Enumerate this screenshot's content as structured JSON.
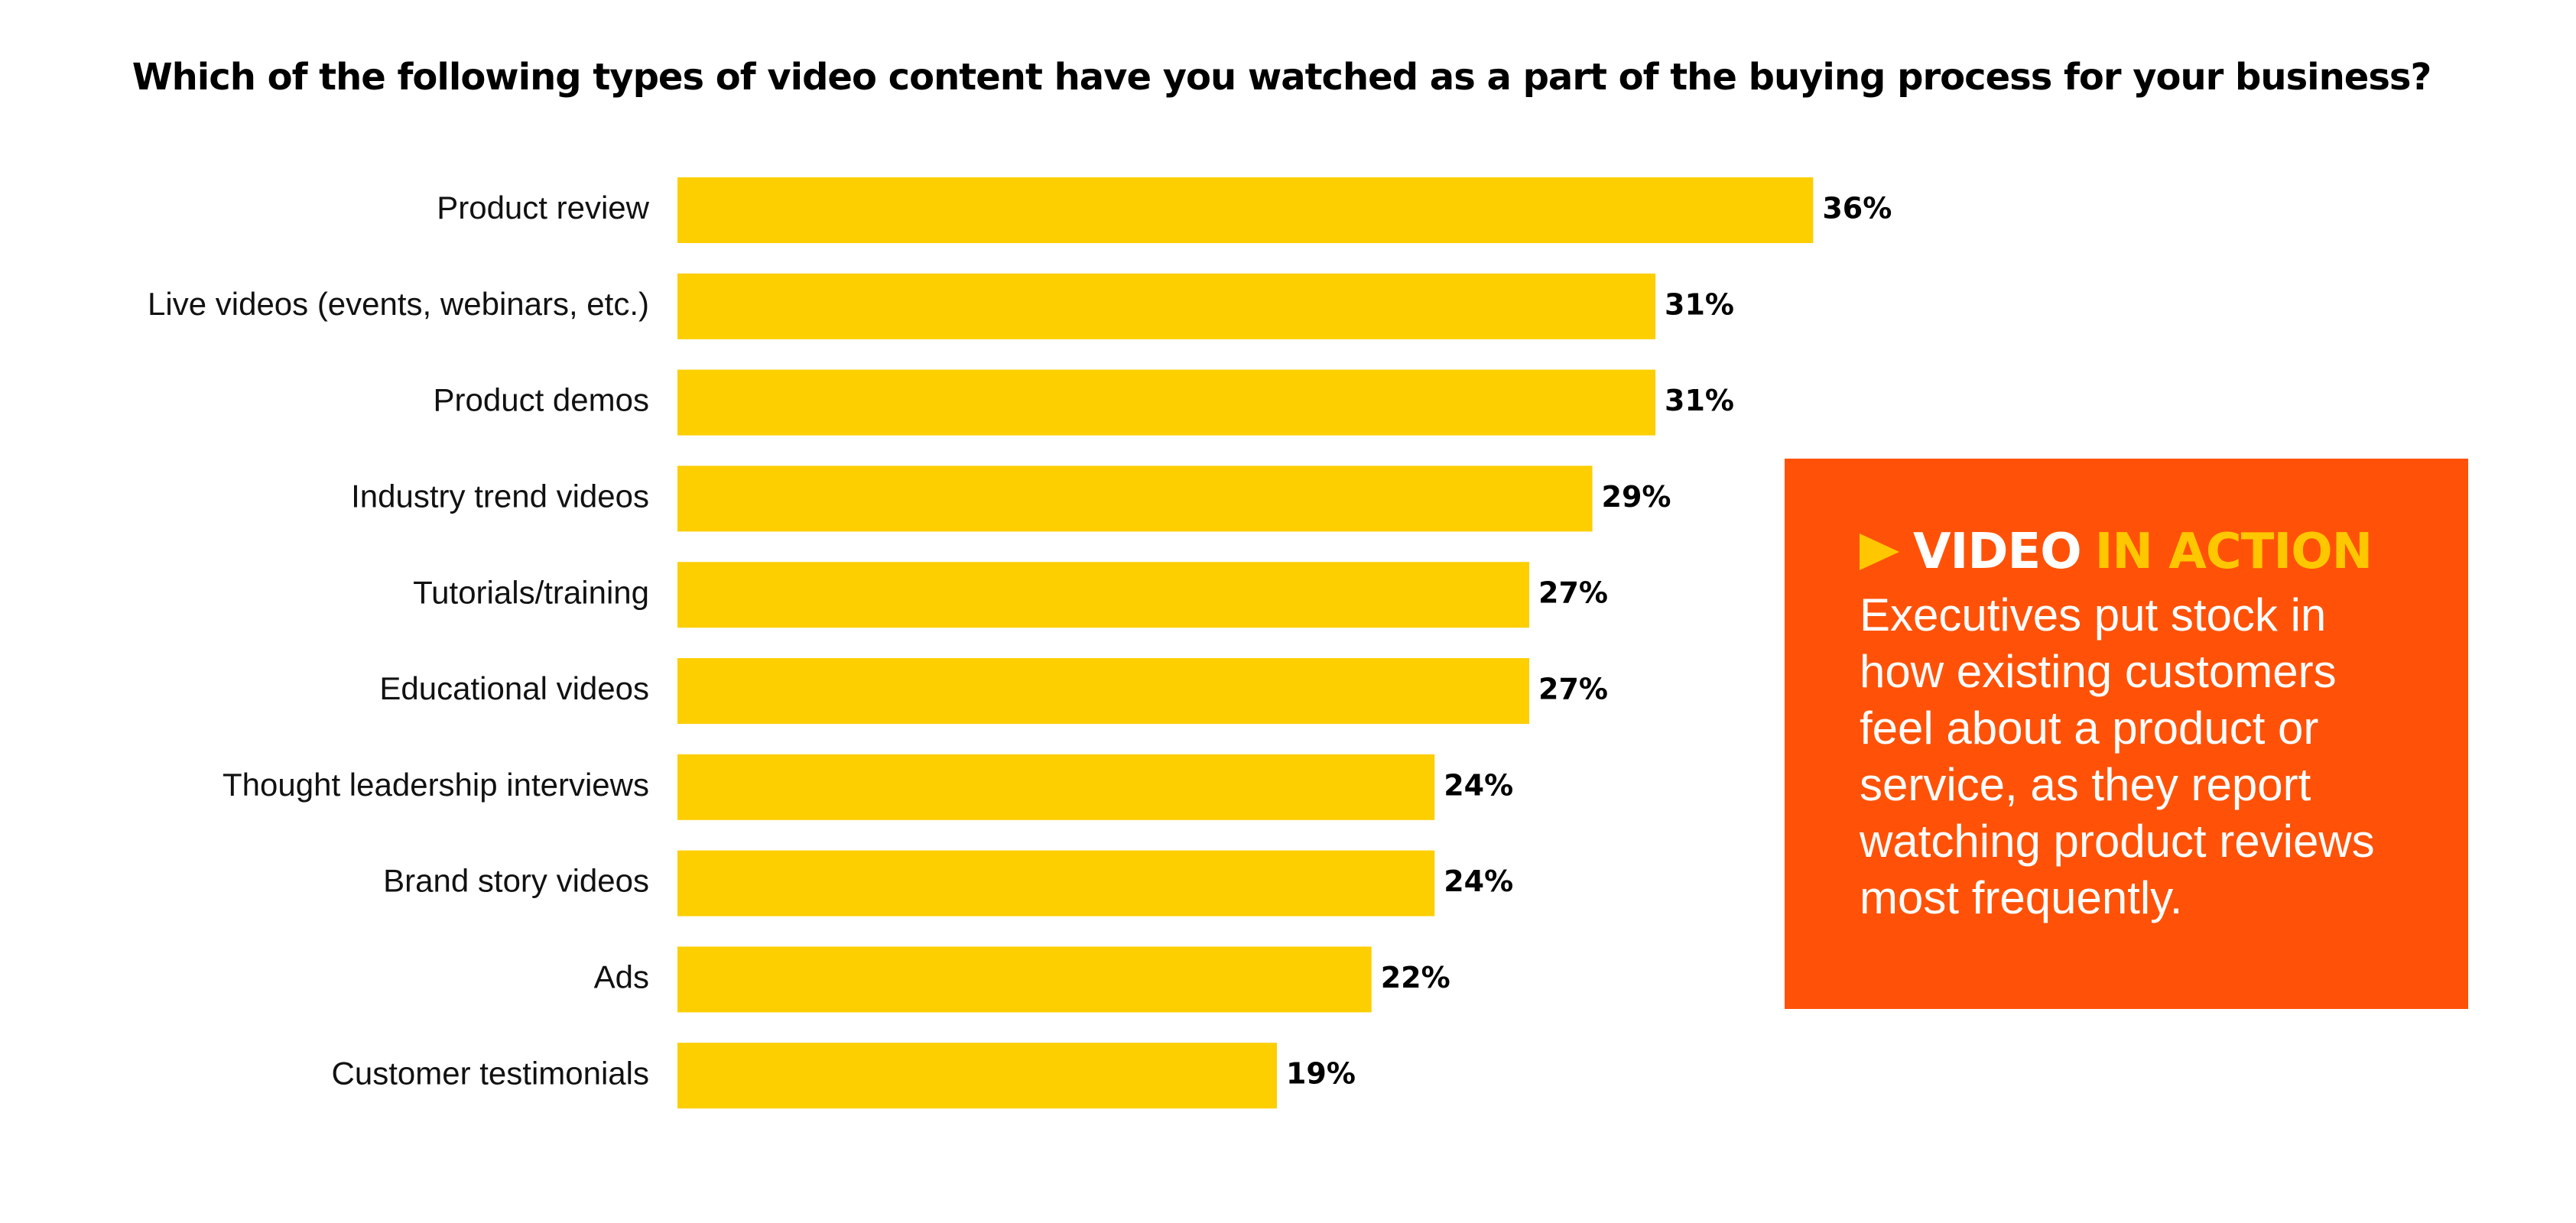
{
  "chart_data": {
    "type": "bar",
    "orientation": "horizontal",
    "title": "Which of the following types of video content have you watched as a part of the buying process for your business?",
    "categories": [
      "Product review",
      "Live videos (events, webinars, etc.)",
      "Product demos",
      "Industry trend videos",
      "Tutorials/training",
      "Educational videos",
      "Thought leadership interviews",
      "Brand story videos",
      "Ads",
      "Customer testimonials"
    ],
    "values": [
      36,
      31,
      31,
      29,
      27,
      27,
      24,
      24,
      22,
      19
    ],
    "value_labels": [
      "36%",
      "31%",
      "31%",
      "29%",
      "27%",
      "27%",
      "24%",
      "24%",
      "22%",
      "19%"
    ],
    "color": "#fdce00",
    "annotation": {
      "label": "VIDEO",
      "highlight": "IN ACTION",
      "text": "Executives put stock in how existing customers feel about a product or service, as they report watching product reviews most frequently."
    }
  }
}
